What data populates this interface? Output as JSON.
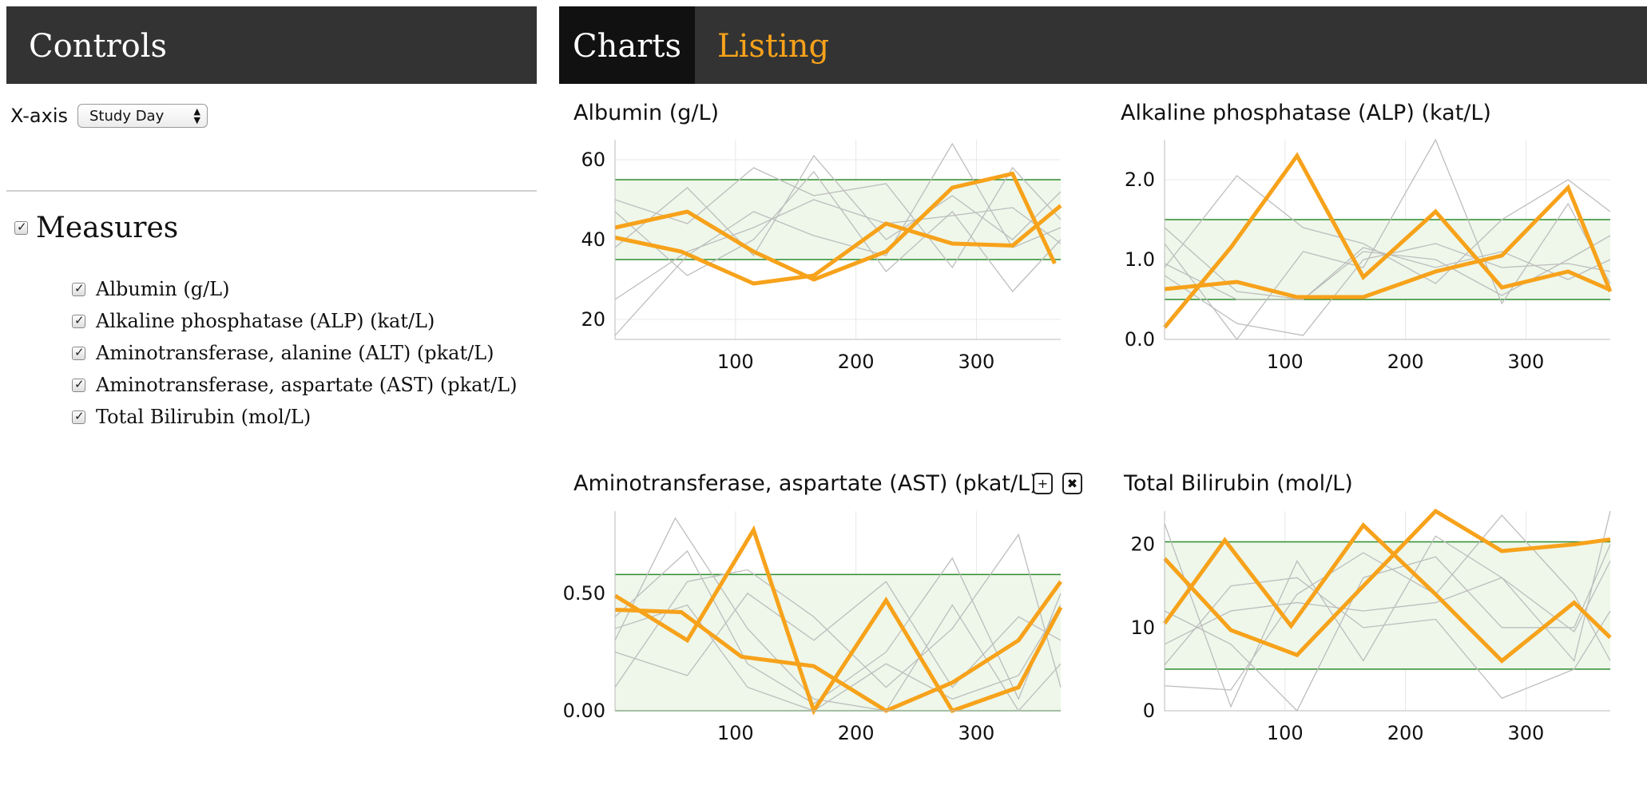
{
  "controls": {
    "title": "Controls",
    "xaxis_label": "X-axis",
    "xaxis_value": "Study Day",
    "measures_title": "Measures",
    "measures": [
      {
        "label": "Albumin (g/L)",
        "checked": true
      },
      {
        "label": "Alkaline phosphatase (ALP) (kat/L)",
        "checked": true
      },
      {
        "label": "Aminotransferase, alanine (ALT) (pkat/L)",
        "checked": true
      },
      {
        "label": "Aminotransferase, aspartate (AST) (pkat/L)",
        "checked": true
      },
      {
        "label": "Total Bilirubin (mol/L)",
        "checked": true
      }
    ]
  },
  "tabs": {
    "charts": "Charts",
    "listing": "Listing"
  },
  "colors": {
    "highlight": "#f7a21b",
    "background_line": "#bdbdbd",
    "normal_range": "#2e8b2e",
    "normal_fill": "#eef7ea",
    "header": "#333333"
  },
  "buttons": {
    "add": "+",
    "remove": "✖"
  },
  "chart_data": [
    {
      "type": "line",
      "title": "Albumin (g/L)",
      "xlim": [
        0,
        370
      ],
      "ylim": [
        15,
        65
      ],
      "xticks": [
        100,
        200,
        300
      ],
      "yticks": [
        20,
        40,
        60
      ],
      "normal_range": [
        35,
        55
      ],
      "highlight_series": [
        {
          "x": [
            0,
            60,
            115,
            165,
            225,
            280,
            330,
            365
          ],
          "y": [
            43,
            47,
            37,
            30,
            37,
            53,
            56.5,
            34
          ]
        },
        {
          "x": [
            0,
            55,
            115,
            165,
            225,
            280,
            330,
            370
          ],
          "y": [
            40.5,
            37,
            29,
            31,
            44,
            39,
            38.5,
            48.5
          ]
        }
      ],
      "background_series": [
        {
          "x": [
            0,
            60,
            115,
            165,
            225,
            280,
            330,
            370
          ],
          "y": [
            25,
            37,
            43,
            50,
            44,
            46,
            48,
            39
          ]
        },
        {
          "x": [
            0,
            60,
            115,
            165,
            225,
            280,
            330,
            370
          ],
          "y": [
            16,
            36,
            47,
            41,
            36,
            64,
            38,
            43
          ]
        },
        {
          "x": [
            0,
            60,
            115,
            165,
            225,
            280,
            330,
            370
          ],
          "y": [
            50,
            44,
            58,
            51,
            54,
            33,
            58,
            45
          ]
        },
        {
          "x": [
            0,
            60,
            115,
            165,
            225,
            280,
            330,
            370
          ],
          "y": [
            47,
            31,
            40,
            57,
            32,
            47,
            27,
            40
          ]
        },
        {
          "x": [
            0,
            60,
            115,
            165,
            225,
            280,
            330,
            370
          ],
          "y": [
            38,
            53,
            36,
            61,
            40,
            51,
            40,
            52
          ]
        }
      ]
    },
    {
      "type": "line",
      "title": "Alkaline phosphatase (ALP) (kat/L)",
      "xlim": [
        0,
        370
      ],
      "ylim": [
        0,
        2.5
      ],
      "xticks": [
        100,
        200,
        300
      ],
      "yticks": [
        "0.0",
        "1.0",
        "2.0"
      ],
      "normal_range": [
        0.5,
        1.5
      ],
      "highlight_series": [
        {
          "x": [
            0,
            55,
            110,
            165,
            225,
            280,
            335,
            370
          ],
          "y": [
            0.15,
            1.15,
            2.3,
            0.78,
            1.6,
            0.65,
            0.85,
            0.62
          ]
        },
        {
          "x": [
            0,
            60,
            110,
            165,
            225,
            280,
            335,
            370
          ],
          "y": [
            0.63,
            0.72,
            0.53,
            0.53,
            0.85,
            1.05,
            1.9,
            0.6
          ]
        }
      ],
      "background_series": [
        {
          "x": [
            0,
            60,
            115,
            165,
            225,
            280,
            335,
            370
          ],
          "y": [
            1.4,
            0.6,
            0.5,
            1.1,
            1.0,
            0.55,
            1.0,
            1.3
          ]
        },
        {
          "x": [
            0,
            60,
            115,
            165,
            225,
            280,
            335,
            370
          ],
          "y": [
            0.9,
            2.05,
            1.4,
            1.2,
            0.7,
            1.5,
            2.0,
            1.6
          ]
        },
        {
          "x": [
            0,
            60,
            115,
            165,
            225,
            280,
            335,
            370
          ],
          "y": [
            1.2,
            0.0,
            1.1,
            0.9,
            2.5,
            0.45,
            1.7,
            0.7
          ]
        },
        {
          "x": [
            0,
            60,
            115,
            165,
            225,
            280,
            335,
            370
          ],
          "y": [
            0.8,
            0.2,
            0.05,
            1.0,
            1.2,
            0.9,
            0.95,
            0.85
          ]
        },
        {
          "x": [
            0,
            60,
            115,
            165,
            225,
            280,
            335,
            370
          ],
          "y": [
            0.95,
            0.5,
            0.5,
            1.15,
            0.9,
            1.1,
            0.75,
            1.0
          ]
        }
      ]
    },
    {
      "type": "line",
      "title": "Aminotransferase, aspartate (AST) (pkat/L)",
      "xlim": [
        0,
        370
      ],
      "ylim": [
        0,
        0.85
      ],
      "xticks": [
        100,
        200,
        300
      ],
      "yticks": [
        "0.00",
        "0.50"
      ],
      "normal_range": [
        0,
        0.58
      ],
      "highlight_series": [
        {
          "x": [
            0,
            60,
            115,
            165,
            225,
            280,
            335,
            370
          ],
          "y": [
            0.49,
            0.3,
            0.77,
            0.0,
            0.47,
            0.0,
            0.1,
            0.44
          ]
        },
        {
          "x": [
            0,
            55,
            105,
            165,
            225,
            280,
            335,
            370
          ],
          "y": [
            0.43,
            0.42,
            0.23,
            0.19,
            0.0,
            0.12,
            0.3,
            0.55
          ]
        }
      ],
      "background_series": [
        {
          "x": [
            0,
            50,
            110,
            165,
            225,
            280,
            335,
            370
          ],
          "y": [
            0.3,
            0.82,
            0.35,
            0.05,
            0.0,
            0.45,
            0.0,
            0.2
          ]
        },
        {
          "x": [
            0,
            60,
            110,
            165,
            225,
            280,
            335,
            370
          ],
          "y": [
            0.1,
            0.55,
            0.6,
            0.4,
            0.1,
            0.35,
            0.75,
            0.1
          ]
        },
        {
          "x": [
            0,
            60,
            110,
            165,
            225,
            280,
            335,
            370
          ],
          "y": [
            0.4,
            0.68,
            0.2,
            0.03,
            0.25,
            0.65,
            0.05,
            0.5
          ]
        },
        {
          "x": [
            0,
            60,
            110,
            165,
            225,
            280,
            335,
            370
          ],
          "y": [
            0.25,
            0.15,
            0.5,
            0.3,
            0.55,
            0.1,
            0.4,
            0.3
          ]
        },
        {
          "x": [
            0,
            60,
            110,
            165,
            225,
            280,
            335,
            370
          ],
          "y": [
            0.35,
            0.45,
            0.1,
            0.0,
            0.2,
            0.05,
            0.15,
            0.45
          ]
        }
      ]
    },
    {
      "type": "line",
      "title": "Total Bilirubin (mol/L)",
      "xlim": [
        0,
        370
      ],
      "ylim": [
        0,
        24
      ],
      "xticks": [
        100,
        200,
        300
      ],
      "yticks": [
        0,
        10,
        20
      ],
      "normal_range": [
        5,
        20.3
      ],
      "highlight_series": [
        {
          "x": [
            0,
            50,
            105,
            165,
            225,
            280,
            340,
            370
          ],
          "y": [
            10.5,
            20.5,
            10.2,
            22.3,
            14,
            6,
            13,
            8.8
          ]
        },
        {
          "x": [
            0,
            55,
            110,
            165,
            225,
            280,
            340,
            370
          ],
          "y": [
            18.3,
            9.7,
            6.7,
            15,
            24,
            19.2,
            20,
            20.6
          ]
        }
      ],
      "background_series": [
        {
          "x": [
            0,
            55,
            110,
            165,
            225,
            280,
            340,
            370
          ],
          "y": [
            22.5,
            0.5,
            18,
            6,
            21,
            16,
            6,
            24
          ]
        },
        {
          "x": [
            0,
            55,
            110,
            165,
            225,
            280,
            340,
            370
          ],
          "y": [
            5.5,
            15,
            16,
            10,
            11,
            1.5,
            5,
            12
          ]
        },
        {
          "x": [
            0,
            55,
            110,
            165,
            225,
            280,
            340,
            370
          ],
          "y": [
            3,
            2.5,
            14,
            19,
            14,
            23.5,
            14,
            6
          ]
        },
        {
          "x": [
            0,
            55,
            110,
            165,
            225,
            280,
            340,
            370
          ],
          "y": [
            12,
            8,
            0,
            16,
            18.5,
            10,
            10,
            20
          ]
        },
        {
          "x": [
            0,
            55,
            110,
            165,
            225,
            280,
            340,
            370
          ],
          "y": [
            8,
            12,
            13,
            12,
            13,
            16,
            9.5,
            18
          ]
        }
      ]
    }
  ]
}
